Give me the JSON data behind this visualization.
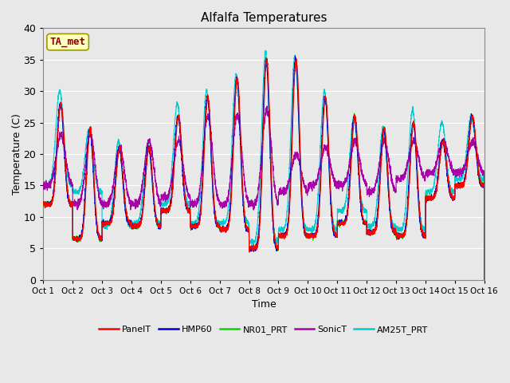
{
  "title": "Alfalfa Temperatures",
  "xlabel": "Time",
  "ylabel": "Temperature (C)",
  "annotation_text": "TA_met",
  "annotation_color": "#8B0000",
  "annotation_bg": "#FFFFC0",
  "annotation_border": "#9B9B00",
  "ylim": [
    0,
    40
  ],
  "yticks": [
    0,
    5,
    10,
    15,
    20,
    25,
    30,
    35,
    40
  ],
  "fig_bg": "#E8E8E8",
  "plot_bg": "#E8E8E8",
  "series_colors": {
    "PanelT": "#FF0000",
    "HMP60": "#0000CC",
    "NR01_PRT": "#00DD00",
    "SonicT": "#AA00AA",
    "AM25T_PRT": "#00CCCC"
  },
  "n_days": 15,
  "x_tick_labels": [
    "Oct 1",
    "Oct 2",
    "Oct 3",
    "Oct 4",
    "Oct 5",
    "Oct 6",
    "Oct 7",
    "Oct 8",
    "Oct 9",
    "Oct 10",
    "Oct 11",
    "Oct 12",
    "Oct 13",
    "Oct 14",
    "Oct 15",
    "Oct 16"
  ],
  "daily_max": [
    28,
    24,
    21,
    21,
    26,
    29,
    32,
    35,
    35,
    29,
    26,
    24,
    25,
    22,
    26
  ],
  "daily_min": [
    12,
    6.5,
    9,
    8.5,
    11,
    8.5,
    8,
    5,
    7,
    7,
    9,
    7.5,
    7,
    13,
    15
  ],
  "am25t_daily_max": [
    30,
    24,
    22,
    21.5,
    28,
    30,
    32.5,
    36,
    35.5,
    30,
    25.5,
    24,
    27,
    25,
    26
  ],
  "am25t_daily_min": [
    15,
    14,
    8.5,
    9,
    12,
    9,
    9,
    6,
    8,
    8,
    11,
    8.5,
    8,
    14,
    16
  ],
  "sonic_daily_max": [
    23,
    23,
    21,
    22,
    22,
    26,
    26,
    27,
    20,
    21,
    22,
    22,
    22,
    22,
    22
  ],
  "sonic_daily_min": [
    15,
    12,
    12,
    12,
    13,
    12,
    12,
    12,
    14,
    15,
    15,
    14,
    16,
    17,
    17
  ],
  "points_per_day": 288
}
